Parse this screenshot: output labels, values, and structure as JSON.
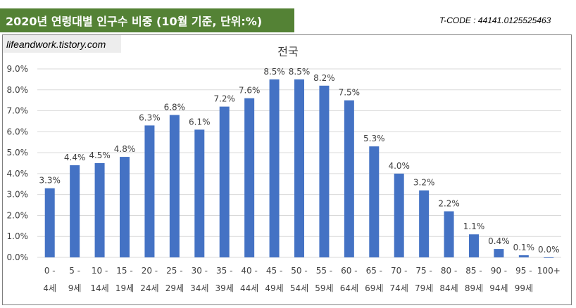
{
  "header": {
    "title": "2020년 연령대별 인구수 비중 (10월 기준, 단위:%)",
    "tcode": "T-CODE : 44141.0125525463",
    "watermark": "lifeandwork.tistory.com"
  },
  "colors": {
    "banner": "#548235",
    "bar": "#4472c4",
    "grid": "#d9d9d9",
    "text": "#404040"
  },
  "chart_data": {
    "type": "bar",
    "title": "전국",
    "xlabel": "",
    "ylabel": "",
    "ylim": [
      0,
      9
    ],
    "grid": true,
    "categories": [
      [
        "0 -",
        "4세"
      ],
      [
        "5 -",
        "9세"
      ],
      [
        "10 -",
        "14세"
      ],
      [
        "15 -",
        "19세"
      ],
      [
        "20 -",
        "24세"
      ],
      [
        "25 -",
        "29세"
      ],
      [
        "30 -",
        "34세"
      ],
      [
        "35 -",
        "39세"
      ],
      [
        "40 -",
        "44세"
      ],
      [
        "45 -",
        "49세"
      ],
      [
        "50 -",
        "54세"
      ],
      [
        "55 -",
        "59세"
      ],
      [
        "60 -",
        "64세"
      ],
      [
        "65 -",
        "69세"
      ],
      [
        "70 -",
        "74세"
      ],
      [
        "75 -",
        "79세"
      ],
      [
        "80 -",
        "84세"
      ],
      [
        "85 -",
        "89세"
      ],
      [
        "90 -",
        "94세"
      ],
      [
        "95 -",
        "99세"
      ],
      [
        "100+",
        ""
      ]
    ],
    "values": [
      3.3,
      4.4,
      4.5,
      4.8,
      6.3,
      6.8,
      6.1,
      7.2,
      7.6,
      8.5,
      8.5,
      8.2,
      7.5,
      5.3,
      4.0,
      3.2,
      2.2,
      1.1,
      0.4,
      0.1,
      0.0
    ],
    "data_labels": [
      "3.3%",
      "4.4%",
      "4.5%",
      "4.8%",
      "6.3%",
      "6.8%",
      "6.1%",
      "7.2%",
      "7.6%",
      "8.5%",
      "8.5%",
      "8.2%",
      "7.5%",
      "5.3%",
      "4.0%",
      "3.2%",
      "2.2%",
      "1.1%",
      "0.4%",
      "0.1%",
      "0.0%"
    ],
    "yticks": [
      "0.0%",
      "1.0%",
      "2.0%",
      "3.0%",
      "4.0%",
      "5.0%",
      "6.0%",
      "7.0%",
      "8.0%",
      "9.0%"
    ]
  }
}
